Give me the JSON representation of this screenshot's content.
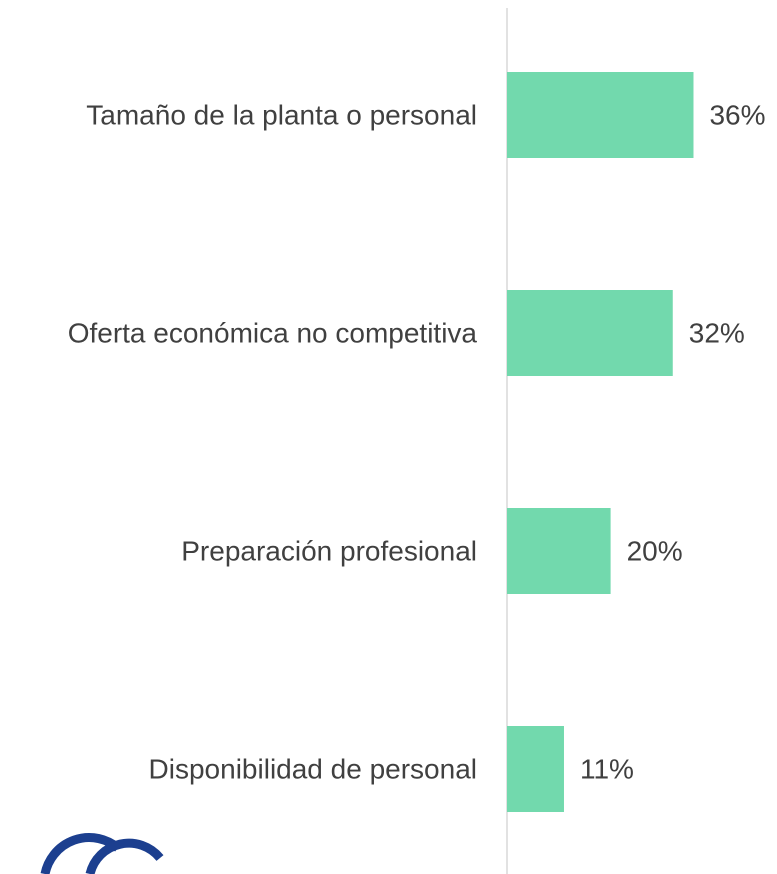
{
  "chart_data": {
    "type": "bar",
    "orientation": "horizontal",
    "categories": [
      "Tamaño de la planta o personal",
      "Oferta económica no competitiva",
      "Preparación profesional",
      "Disponibilidad de personal"
    ],
    "values": [
      36,
      32,
      20,
      11
    ],
    "value_labels": [
      "36%",
      "32%",
      "20%",
      "11%"
    ],
    "color": "#72d9ad"
  }
}
